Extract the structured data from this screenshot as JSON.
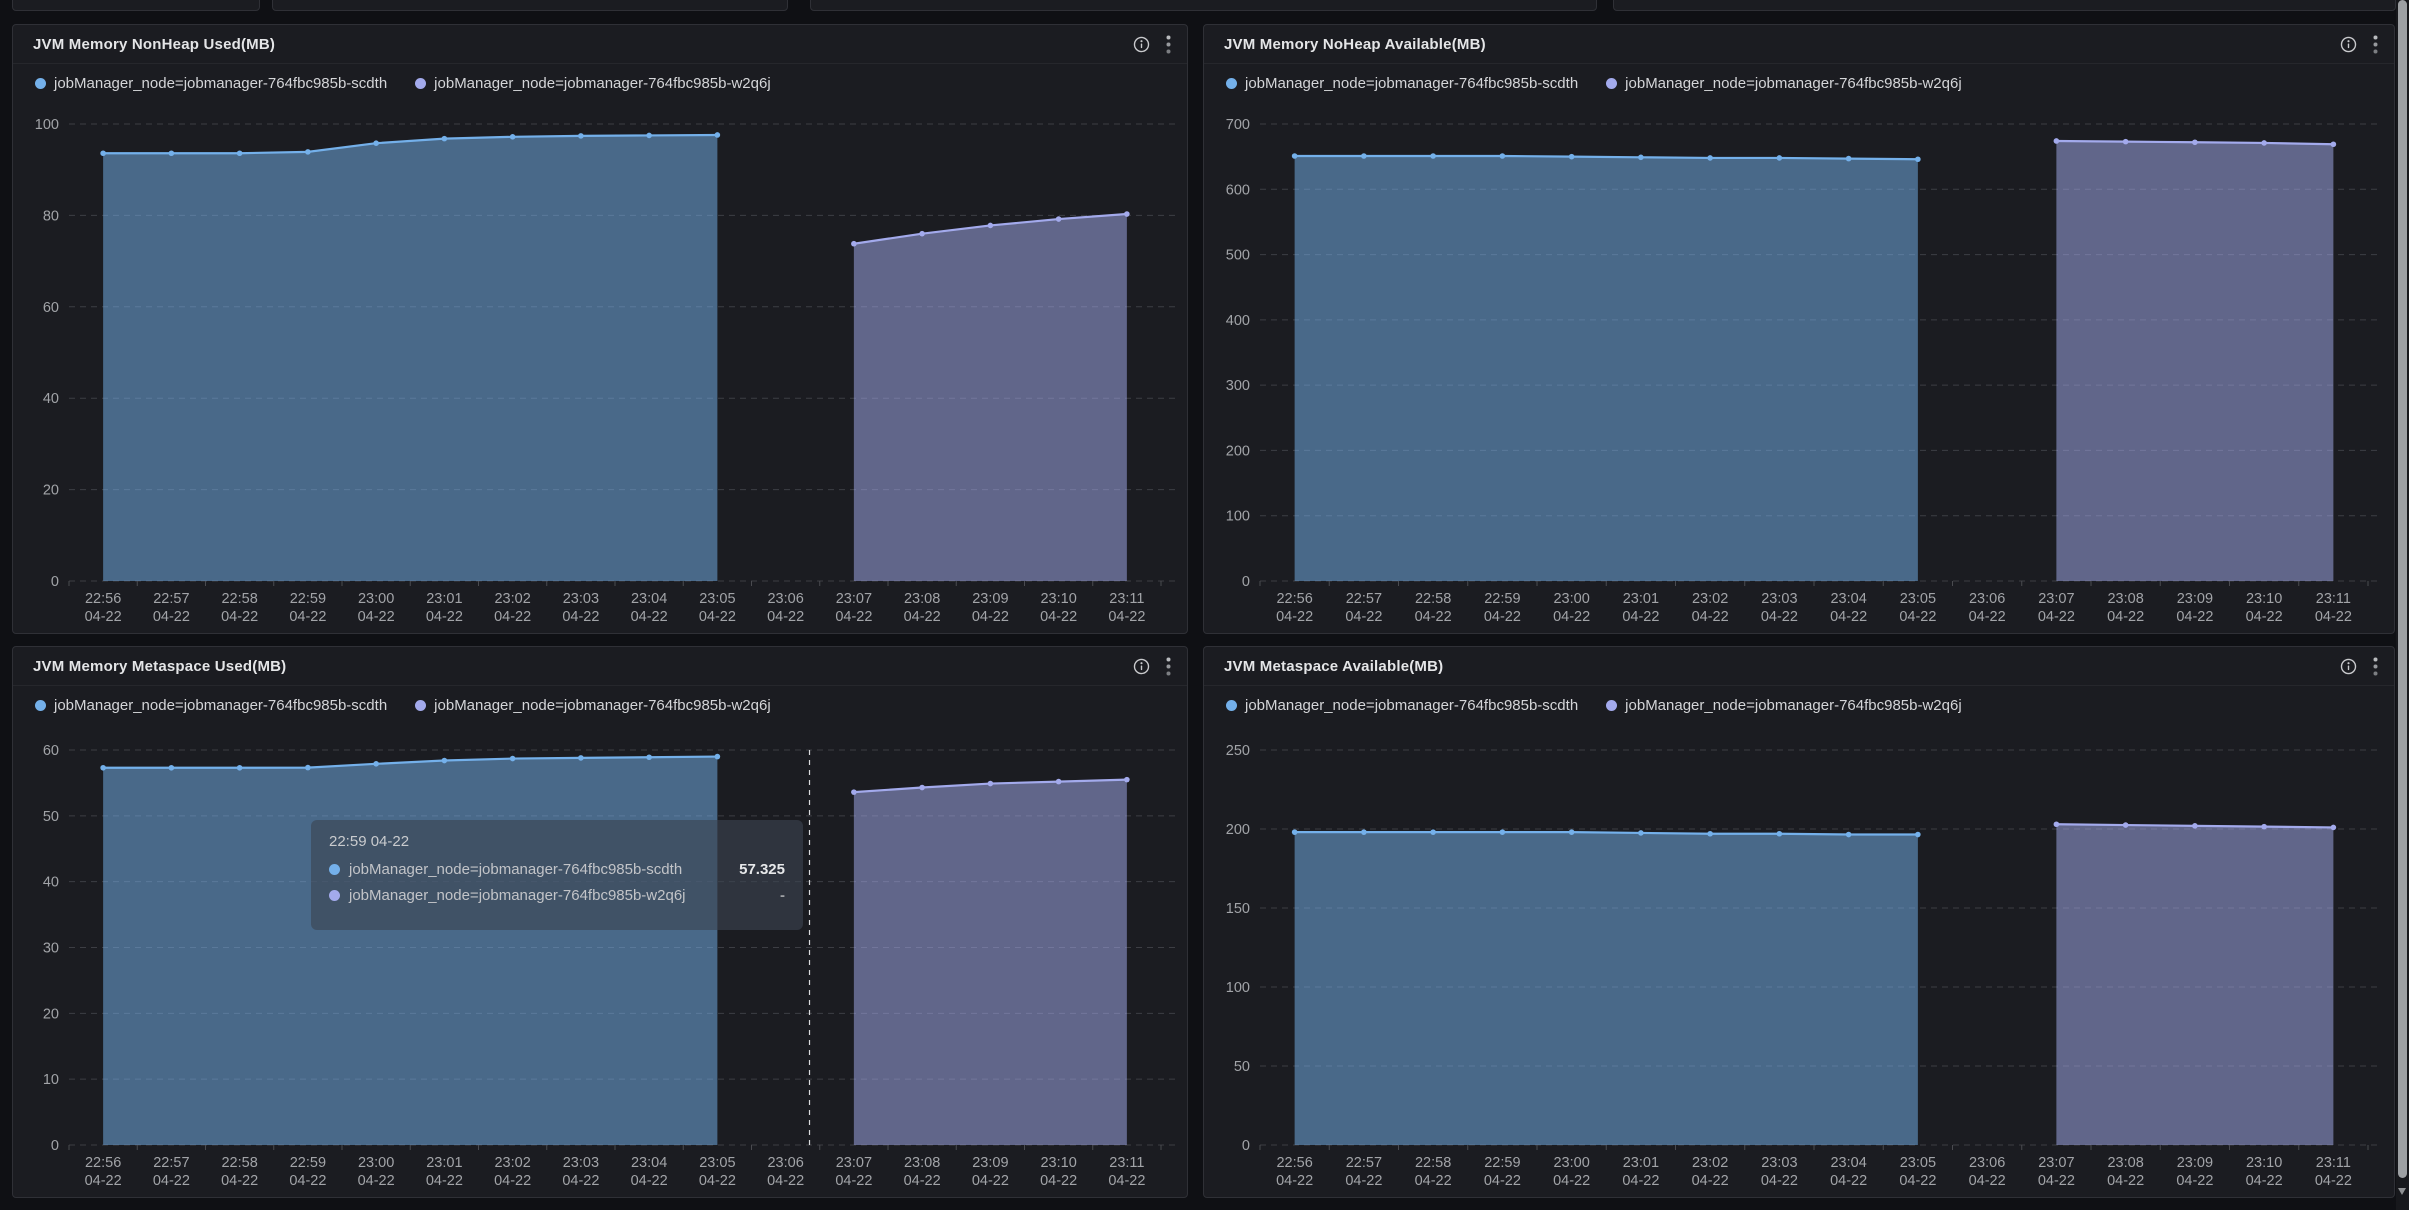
{
  "colors": {
    "series1": "#74b0ea",
    "series2": "#a3aaec",
    "panel_bg": "#1b1c21",
    "page_bg": "#0f1014",
    "grid": "#3d3e44",
    "axis_text": "#a2a4a8"
  },
  "icons": {
    "panel_info": "info-icon",
    "panel_menu": "kebab-menu-icon",
    "scrollbar_arrow": "scrollbar-down-arrow"
  },
  "tooltip": {
    "header": "22:59 04-22",
    "rows": [
      {
        "label": "jobManager_node=jobmanager-764fbc985b-scdth",
        "value": "57.325"
      },
      {
        "label": "jobManager_node=jobmanager-764fbc985b-w2q6j",
        "value": "-"
      }
    ]
  },
  "chart_data": [
    {
      "type": "area",
      "title": "JVM Memory NonHeap Used(MB)",
      "x": [
        "22:56",
        "22:57",
        "22:58",
        "22:59",
        "23:00",
        "23:01",
        "23:02",
        "23:03",
        "23:04",
        "23:05",
        "23:06",
        "23:07",
        "23:08",
        "23:09",
        "23:10",
        "23:11"
      ],
      "x_date": "04-22",
      "ylim": [
        0,
        100
      ],
      "ytick_step": 20,
      "grid": "dashed",
      "legend_position": "top",
      "series": [
        {
          "name": "jobManager_node=jobmanager-764fbc985b-scdth",
          "color": "#74b0ea",
          "values": [
            93.6,
            93.6,
            93.6,
            93.9,
            95.8,
            96.8,
            97.2,
            97.4,
            97.5,
            97.6,
            null,
            null,
            null,
            null,
            null,
            null
          ]
        },
        {
          "name": "jobManager_node=jobmanager-764fbc985b-w2q6j",
          "color": "#a3aaec",
          "values": [
            null,
            null,
            null,
            null,
            null,
            null,
            null,
            null,
            null,
            null,
            null,
            73.8,
            76.0,
            77.8,
            79.2,
            80.3
          ]
        }
      ]
    },
    {
      "type": "area",
      "title": "JVM Memory NoHeap Available(MB)",
      "x": [
        "22:56",
        "22:57",
        "22:58",
        "22:59",
        "23:00",
        "23:01",
        "23:02",
        "23:03",
        "23:04",
        "23:05",
        "23:06",
        "23:07",
        "23:08",
        "23:09",
        "23:10",
        "23:11"
      ],
      "x_date": "04-22",
      "ylim": [
        0,
        700
      ],
      "ytick_step": 100,
      "grid": "dashed",
      "legend_position": "top",
      "series": [
        {
          "name": "jobManager_node=jobmanager-764fbc985b-scdth",
          "color": "#74b0ea",
          "values": [
            651,
            651,
            651,
            651,
            650,
            649,
            648,
            648,
            647,
            646,
            null,
            null,
            null,
            null,
            null,
            null
          ]
        },
        {
          "name": "jobManager_node=jobmanager-764fbc985b-w2q6j",
          "color": "#a3aaec",
          "values": [
            null,
            null,
            null,
            null,
            null,
            null,
            null,
            null,
            null,
            null,
            null,
            674,
            673,
            672,
            671,
            669
          ]
        }
      ]
    },
    {
      "type": "area",
      "title": "JVM Memory Metaspace Used(MB)",
      "x": [
        "22:56",
        "22:57",
        "22:58",
        "22:59",
        "23:00",
        "23:01",
        "23:02",
        "23:03",
        "23:04",
        "23:05",
        "23:06",
        "23:07",
        "23:08",
        "23:09",
        "23:10",
        "23:11"
      ],
      "x_date": "04-22",
      "ylim": [
        0,
        60
      ],
      "ytick_step": 10,
      "grid": "dashed",
      "legend_position": "top",
      "crosshair_slot": 10.85,
      "series": [
        {
          "name": "jobManager_node=jobmanager-764fbc985b-scdth",
          "color": "#74b0ea",
          "values": [
            57.3,
            57.3,
            57.3,
            57.325,
            57.9,
            58.4,
            58.7,
            58.8,
            58.9,
            59.0,
            null,
            null,
            null,
            null,
            null,
            null
          ]
        },
        {
          "name": "jobManager_node=jobmanager-764fbc985b-w2q6j",
          "color": "#a3aaec",
          "values": [
            null,
            null,
            null,
            null,
            null,
            null,
            null,
            null,
            null,
            null,
            null,
            53.6,
            54.3,
            54.9,
            55.2,
            55.5
          ]
        }
      ]
    },
    {
      "type": "area",
      "title": "JVM Metaspace Available(MB)",
      "x": [
        "22:56",
        "22:57",
        "22:58",
        "22:59",
        "23:00",
        "23:01",
        "23:02",
        "23:03",
        "23:04",
        "23:05",
        "23:06",
        "23:07",
        "23:08",
        "23:09",
        "23:10",
        "23:11"
      ],
      "x_date": "04-22",
      "ylim": [
        0,
        250
      ],
      "ytick_step": 50,
      "grid": "dashed",
      "legend_position": "top",
      "series": [
        {
          "name": "jobManager_node=jobmanager-764fbc985b-scdth",
          "color": "#74b0ea",
          "values": [
            198,
            198,
            198,
            198,
            198,
            197.5,
            197,
            197,
            196.5,
            196.5,
            null,
            null,
            null,
            null,
            null,
            null
          ]
        },
        {
          "name": "jobManager_node=jobmanager-764fbc985b-w2q6j",
          "color": "#a3aaec",
          "values": [
            null,
            null,
            null,
            null,
            null,
            null,
            null,
            null,
            null,
            null,
            null,
            203,
            202.5,
            202,
            201.5,
            201
          ]
        }
      ]
    }
  ]
}
